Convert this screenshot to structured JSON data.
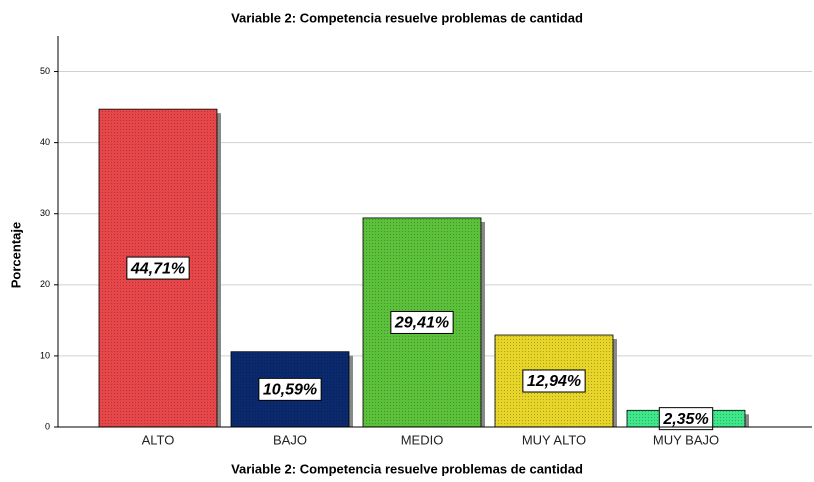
{
  "chart_data": {
    "type": "bar",
    "title": "Variable 2: Competencia resuelve problemas de cantidad",
    "x_label": "Variable 2: Competencia resuelve problemas de cantidad",
    "y_label": "Porcentaje",
    "categories": [
      "ALTO",
      "BAJO",
      "MEDIO",
      "MUY ALTO",
      "MUY BAJO"
    ],
    "values": [
      44.71,
      10.59,
      29.41,
      12.94,
      2.35
    ],
    "value_labels": [
      "44,71%",
      "10,59%",
      "29,41%",
      "12,94%",
      "2,35%"
    ],
    "colors": [
      "#e8474a",
      "#0b2a6e",
      "#5cc13a",
      "#e8d52a",
      "#3ee88a"
    ],
    "ylim": [
      0,
      55
    ],
    "yticks": [
      0,
      10,
      20,
      30,
      40,
      50
    ],
    "grid": true
  }
}
